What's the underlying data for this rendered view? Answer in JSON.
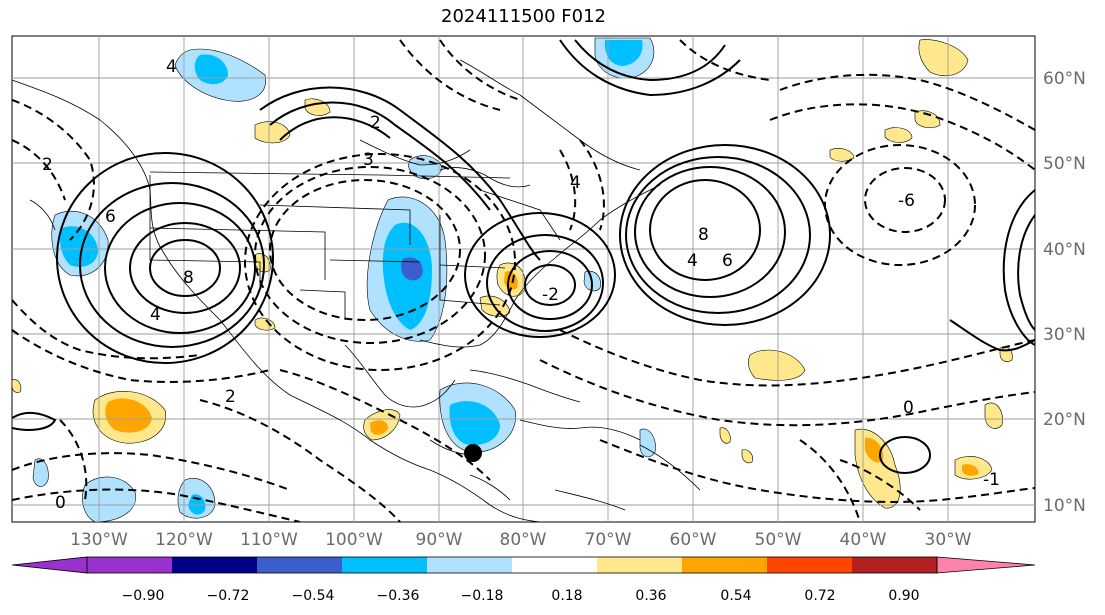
{
  "title": "2024111500 F012",
  "map": {
    "lon_labels": [
      "130°W",
      "120°W",
      "110°W",
      "100°W",
      "90°W",
      "80°W",
      "70°W",
      "60°W",
      "50°W",
      "40°W",
      "30°W"
    ],
    "lat_labels": [
      "60°N",
      "50°N",
      "40°N",
      "30°N",
      "20°N",
      "10°N"
    ],
    "contour_labels": [
      {
        "text": "2"
      },
      {
        "text": "6"
      },
      {
        "text": "8"
      },
      {
        "text": "4"
      },
      {
        "text": "2"
      },
      {
        "text": "3"
      },
      {
        "text": "2"
      },
      {
        "text": "4"
      },
      {
        "text": "8"
      },
      {
        "text": "6"
      },
      {
        "text": "4"
      },
      {
        "text": "-6"
      },
      {
        "text": "0"
      },
      {
        "text": "0"
      },
      {
        "text": "-1"
      },
      {
        "text": "4"
      },
      {
        "text": "-2"
      }
    ],
    "marker": "storm-center"
  },
  "colorbar": {
    "tick_labels": [
      "−0.90",
      "−0.72",
      "−0.54",
      "−0.36",
      "−0.18",
      "0.18",
      "0.36",
      "0.54",
      "0.72",
      "0.90"
    ],
    "colors": [
      "#9932cc",
      "#00008b",
      "#3a5fcd",
      "#00bfff",
      "#b0e2ff",
      "#ffffff",
      "#ffe88c",
      "#ffa500",
      "#ff4500",
      "#b22222",
      "#ff82ab"
    ]
  }
}
